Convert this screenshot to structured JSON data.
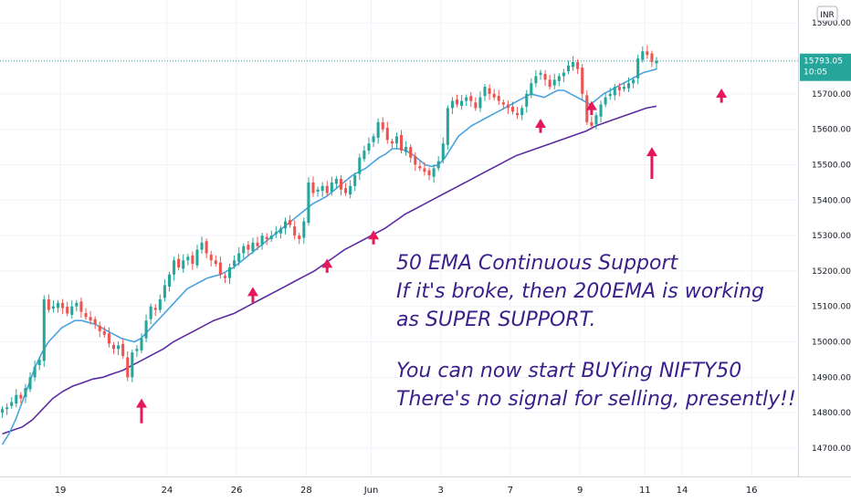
{
  "chart_data": {
    "type": "candlestick",
    "currency": "INR",
    "last_price_label": "15793.05",
    "timer_label": "10:05",
    "y_ticks": [
      "15900.00",
      "15800.00",
      "15700.00",
      "15600.00",
      "15500.00",
      "15400.00",
      "15300.00",
      "15200.00",
      "15100.00",
      "15000.00",
      "14900.00",
      "14800.00",
      "14700.00"
    ],
    "ylim": [
      14620,
      15965
    ],
    "x_ticks": [
      {
        "label": "19",
        "i": 13
      },
      {
        "label": "24",
        "i": 36
      },
      {
        "label": "26",
        "i": 51
      },
      {
        "label": "28",
        "i": 66
      },
      {
        "label": "Jun",
        "i": 80
      },
      {
        "label": "3",
        "i": 95
      },
      {
        "label": "7",
        "i": 110
      },
      {
        "label": "9",
        "i": 125
      },
      {
        "label": "11",
        "i": 139
      },
      {
        "label": "14",
        "i": 147
      },
      {
        "label": "16",
        "i": 162
      }
    ],
    "xlim": [
      0,
      172
    ],
    "close_series": [
      14810,
      14815,
      14830,
      14850,
      14840,
      14870,
      14900,
      14930,
      14950,
      15120,
      15090,
      15100,
      15110,
      15095,
      15080,
      15100,
      15110,
      15085,
      15070,
      15060,
      15050,
      15030,
      15020,
      14995,
      14980,
      14990,
      14960,
      14900,
      14970,
      14980,
      15010,
      15060,
      15100,
      15090,
      15120,
      15160,
      15190,
      15230,
      15210,
      15230,
      15240,
      15220,
      15260,
      15280,
      15250,
      15230,
      15220,
      15190,
      15180,
      15210,
      15230,
      15250,
      15270,
      15260,
      15280,
      15270,
      15300,
      15290,
      15300,
      15310,
      15320,
      15340,
      15330,
      15300,
      15290,
      15340,
      15450,
      15420,
      15430,
      15440,
      15420,
      15450,
      15460,
      15430,
      15420,
      15440,
      15470,
      15520,
      15540,
      15560,
      15580,
      15620,
      15600,
      15570,
      15560,
      15580,
      15540,
      15550,
      15520,
      15500,
      15490,
      15480,
      15470,
      15490,
      15510,
      15560,
      15660,
      15680,
      15670,
      15680,
      15690,
      15680,
      15660,
      15690,
      15720,
      15700,
      15690,
      15680,
      15670,
      15660,
      15650,
      15640,
      15660,
      15700,
      15730,
      15750,
      15760,
      15740,
      15720,
      15740,
      15750,
      15760,
      15780,
      15790,
      15770,
      15700,
      15620,
      15610,
      15640,
      15670,
      15690,
      15700,
      15720,
      15710,
      15720,
      15730,
      15740,
      15800,
      15820,
      15810,
      15790,
      15793.05
    ],
    "ema50_series": [
      14710,
      14740,
      14780,
      14830,
      14880,
      14930,
      14970,
      15000,
      15020,
      15040,
      15050,
      15060,
      15060,
      15055,
      15050,
      15040,
      15030,
      15020,
      15010,
      15005,
      15000,
      15010,
      15030,
      15050,
      15070,
      15090,
      15110,
      15130,
      15150,
      15160,
      15170,
      15180,
      15185,
      15190,
      15200,
      15210,
      15225,
      15240,
      15255,
      15270,
      15285,
      15300,
      15315,
      15330,
      15345,
      15360,
      15375,
      15390,
      15400,
      15410,
      15425,
      15440,
      15455,
      15470,
      15480,
      15490,
      15505,
      15520,
      15530,
      15545,
      15545,
      15540,
      15530,
      15515,
      15500,
      15495,
      15500,
      15520,
      15550,
      15580,
      15595,
      15610,
      15620,
      15630,
      15640,
      15650,
      15660,
      15670,
      15680,
      15690,
      15700,
      15695,
      15690,
      15700,
      15710,
      15710,
      15700,
      15690,
      15680,
      15670,
      15685,
      15700,
      15710,
      15720,
      15730,
      15740,
      15750,
      15760,
      15765,
      15770
    ],
    "ema200_series": [
      14740,
      14750,
      14760,
      14780,
      14810,
      14840,
      14860,
      14875,
      14885,
      14895,
      14900,
      14910,
      14920,
      14935,
      14950,
      14965,
      14980,
      15000,
      15015,
      15030,
      15045,
      15060,
      15070,
      15080,
      15095,
      15110,
      15125,
      15140,
      15155,
      15170,
      15185,
      15200,
      15220,
      15240,
      15260,
      15275,
      15290,
      15305,
      15320,
      15340,
      15360,
      15375,
      15390,
      15405,
      15420,
      15435,
      15450,
      15465,
      15480,
      15495,
      15510,
      15525,
      15535,
      15545,
      15555,
      15565,
      15575,
      15585,
      15595,
      15610,
      15620,
      15630,
      15640,
      15650,
      15660,
      15665
    ],
    "arrows": [
      {
        "i": 30,
        "tip": 14840,
        "tail": 14770
      },
      {
        "i": 54,
        "tip": 15155,
        "tail": 15110
      },
      {
        "i": 70,
        "tip": 15235,
        "tail": 15195
      },
      {
        "i": 80,
        "tip": 15315,
        "tail": 15275
      },
      {
        "i": 116,
        "tip": 15630,
        "tail": 15590
      },
      {
        "i": 127,
        "tip": 15680,
        "tail": 15640
      },
      {
        "i": 140,
        "tip": 15550,
        "tail": 15460
      },
      {
        "i": 155,
        "tip": 15715,
        "tail": 15675
      }
    ],
    "annotation_lines": [
      "50 EMA Continuous Support",
      "If it's broke, then 200EMA is working",
      "as SUPER SUPPORT.",
      "",
      "You can now start BUYing NIFTY50",
      "There's no signal for selling, presently!!"
    ],
    "colors": {
      "up": "#26a69a",
      "down": "#ef5350",
      "ema50": "#4aa3df",
      "ema200": "#5b2c9f",
      "arrow": "#e3195c",
      "annotation": "#3a1f8a",
      "price_tag": "#26a69a",
      "grid": "#f0f3fa"
    }
  }
}
